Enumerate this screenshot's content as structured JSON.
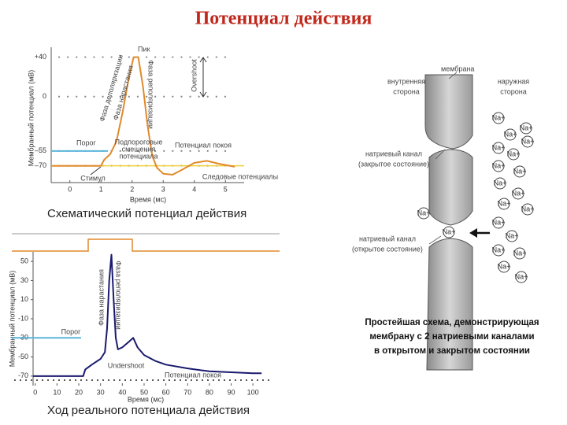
{
  "title": "Потенциал действия",
  "chart_data": [
    {
      "type": "line",
      "title": "Схематический потенциал действия",
      "x_label": "Время (мс)",
      "y_label": "Мембранный потенциал (мВ)",
      "xlim": [
        -0.6,
        5.6
      ],
      "ylim": [
        -87,
        50
      ],
      "xticks": [
        0,
        1,
        2,
        3,
        4,
        5
      ],
      "yticks": [
        {
          "value": 40,
          "label": "+40"
        },
        0,
        {
          "value": -55,
          "label": "–55"
        },
        {
          "value": -70,
          "label": "–70"
        }
      ],
      "grid": true,
      "color": "#e08a2c",
      "threshold": -55,
      "resting": -70,
      "x": [
        -0.6,
        1.0,
        1.1,
        1.3,
        1.5,
        1.7,
        1.9,
        2.05,
        2.2,
        2.35,
        2.5,
        2.65,
        2.8,
        3.0,
        3.3,
        3.6,
        4.0,
        4.4,
        4.8,
        5.3
      ],
      "values": [
        -70,
        -70,
        -64,
        -58,
        -45,
        -15,
        20,
        40,
        40,
        10,
        -30,
        -60,
        -72,
        -78,
        -79,
        -74,
        -67,
        -65,
        -68,
        -71
      ],
      "annotations": [
        "Пик",
        "Фаза деполяризации",
        "Фаза нарастания",
        "Фаза реполяризации",
        "Overshoot",
        "Порог",
        "Стимул",
        "Подпороговые",
        "смещения",
        "потенциала",
        "Потенциал покоя",
        "Следовые потенциалы"
      ]
    },
    {
      "type": "line",
      "title": "Ход реального потенциала действия",
      "x_label": "Время (мс)",
      "y_label": "Мембранный потенциал (мВ)",
      "xlim": [
        -1,
        105
      ],
      "ylim": [
        -80,
        60
      ],
      "xticks": [
        0,
        10,
        20,
        30,
        40,
        50,
        60,
        70,
        80,
        90,
        100
      ],
      "yticks": [
        50,
        30,
        10,
        -10,
        -30,
        -50,
        -70
      ],
      "color": "#1a1a6e",
      "threshold": -30,
      "x": [
        -1,
        22,
        23,
        26,
        30,
        32,
        33,
        34,
        35,
        36,
        37,
        38,
        40,
        42,
        44,
        45,
        47,
        50,
        55,
        60,
        70,
        80,
        90,
        100,
        104
      ],
      "values": [
        -70,
        -70,
        -63,
        -58,
        -52,
        -45,
        -20,
        30,
        57,
        10,
        -30,
        -42,
        -40,
        -36,
        -32,
        -30,
        -40,
        -48,
        -54,
        -58,
        -62,
        -65,
        -66,
        -67,
        -67
      ],
      "annotations": [
        "Фаза нарастания",
        "Фаза реполяризации",
        "Порог",
        "Undershoot",
        "Потенциал покоя"
      ]
    }
  ],
  "diagram": {
    "membrane_label": "мембрана",
    "inner_side": [
      "внутренняя",
      "сторона"
    ],
    "outer_side": [
      "наружная",
      "сторона"
    ],
    "closed_channel": [
      "натриевый канал",
      "(закрытое состояние)"
    ],
    "open_channel": [
      "натриевый канал",
      "(открытое состояние)"
    ],
    "ion": "Na+",
    "caption": [
      "Простейшая схема, демонстрирующая",
      "мембрану с 2 натриевыми каналами",
      "в открытом и закрытом состоянии"
    ]
  }
}
